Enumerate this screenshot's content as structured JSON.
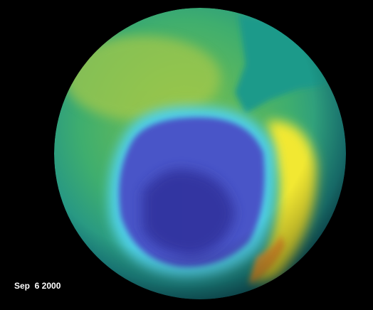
{
  "caption": "Sep  6 2000"
}
